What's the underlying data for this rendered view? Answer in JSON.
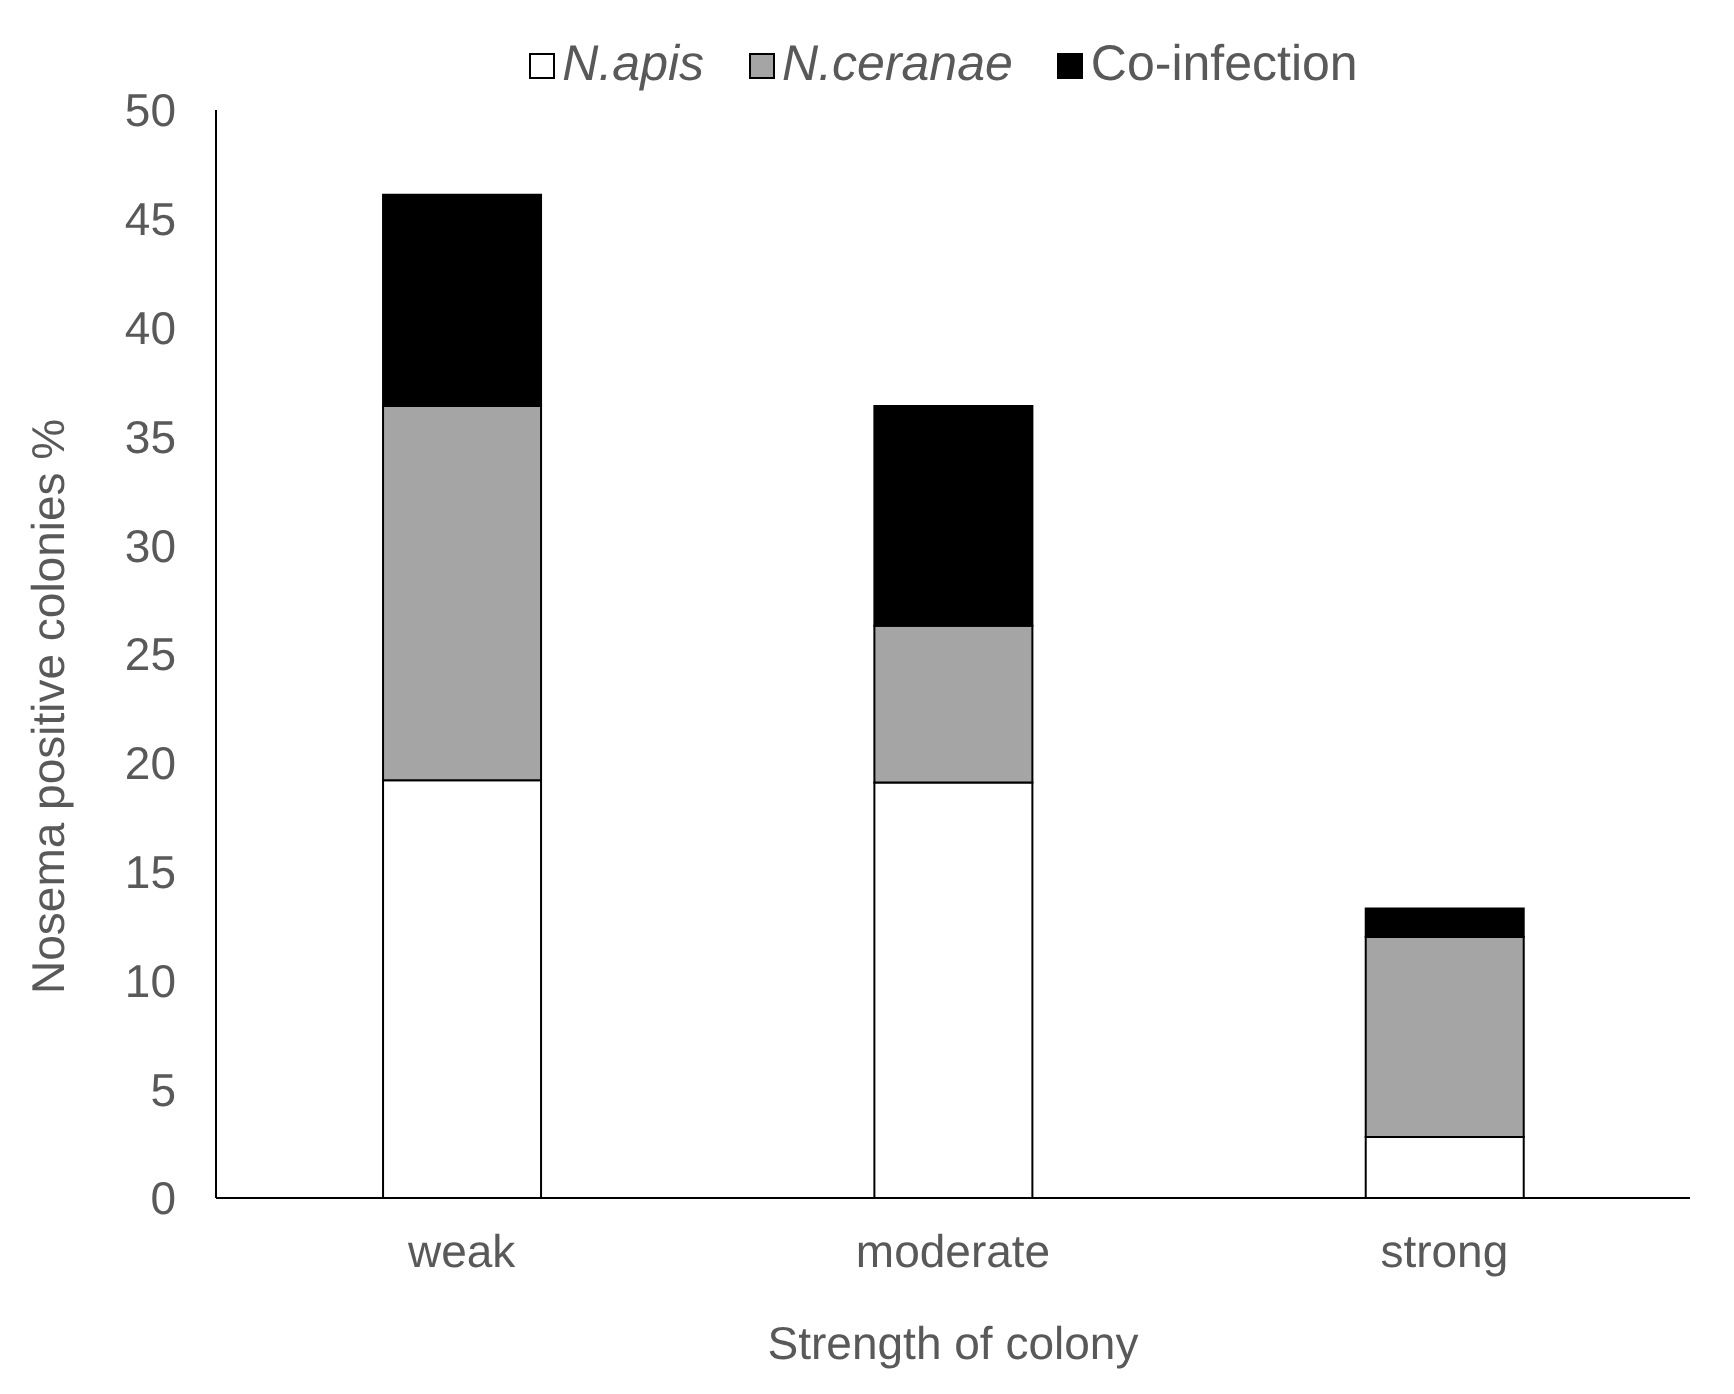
{
  "chart_data": {
    "type": "bar",
    "stacked": true,
    "xlabel": "Strength of colony",
    "ylabel": "Nosema positive colonies %",
    "categories": [
      "weak",
      "moderate",
      "strong"
    ],
    "series": [
      {
        "name": "N.apis",
        "color": "#ffffff",
        "values": [
          19.2,
          19.1,
          2.8
        ]
      },
      {
        "name": "N.ceranae",
        "color": "#a5a5a5",
        "values": [
          17.2,
          7.2,
          9.2
        ]
      },
      {
        "name": "Co-infection",
        "color": "#000000",
        "values": [
          9.7,
          10.1,
          1.3
        ]
      }
    ],
    "ylim": [
      0,
      50
    ],
    "yticks": [
      0,
      5,
      10,
      15,
      20,
      25,
      30,
      35,
      40,
      45,
      50
    ],
    "grid": false,
    "legend": "top"
  }
}
